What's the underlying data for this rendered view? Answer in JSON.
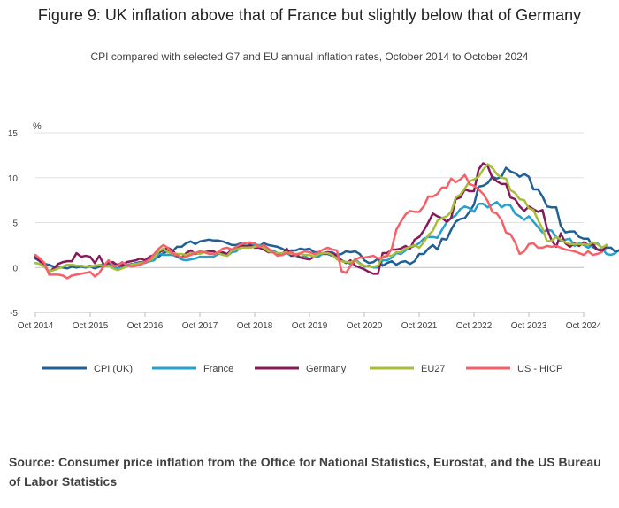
{
  "title": "Figure 9: UK inflation above that of France but slightly below that of Germany",
  "subtitle": "CPI compared with selected G7 and EU annual inflation rates, October 2014 to October 2024",
  "source": "Source: Consumer price inflation from the Office for National Statistics, Eurostat, and the US Bureau of Labor Statistics",
  "chart_data": {
    "type": "line",
    "ylabel": "%",
    "ylim": [
      -5,
      15
    ],
    "yticks": [
      -5,
      0,
      5,
      10,
      15
    ],
    "xlim": [
      0,
      120
    ],
    "grid": true,
    "legend_position": "bottom",
    "x_ticks": [
      {
        "month_index": 0,
        "label": "Oct 2014"
      },
      {
        "month_index": 12,
        "label": "Oct 2015"
      },
      {
        "month_index": 24,
        "label": "Oct 2016"
      },
      {
        "month_index": 36,
        "label": "Oct 2017"
      },
      {
        "month_index": 48,
        "label": "Oct 2018"
      },
      {
        "month_index": 60,
        "label": "Oct 2019"
      },
      {
        "month_index": 72,
        "label": "Oct 2020"
      },
      {
        "month_index": 84,
        "label": "Oct 2021"
      },
      {
        "month_index": 96,
        "label": "Oct 2022"
      },
      {
        "month_index": 108,
        "label": "Oct 2023"
      },
      {
        "month_index": 120,
        "label": "Oct 2024"
      }
    ],
    "x_note": "month_index 0 = Oct 2014, monthly observations",
    "series": [
      {
        "name": "CPI (UK)",
        "color": "#206095",
        "values": [
          1.0,
          0.7,
          0.4,
          0.3,
          0.1,
          0.0,
          0.0,
          -0.1,
          0.1,
          0.0,
          0.1,
          0.0,
          0.1,
          -0.1,
          0.1,
          0.2,
          0.3,
          0.5,
          0.3,
          0.5,
          0.3,
          0.3,
          0.5,
          0.6,
          0.6,
          0.7,
          0.9,
          1.2,
          1.6,
          1.8,
          1.8,
          2.3,
          2.3,
          2.7,
          2.9,
          2.6,
          2.9,
          3.0,
          3.1,
          3.0,
          3.0,
          2.9,
          2.7,
          2.5,
          2.5,
          2.7,
          2.4,
          2.5,
          2.4,
          2.4,
          2.7,
          2.5,
          2.4,
          2.3,
          2.1,
          1.8,
          1.9,
          1.9,
          2.1,
          2.0,
          2.1,
          1.7,
          1.7,
          1.5,
          1.5,
          1.3,
          1.4,
          1.5,
          1.8,
          1.7,
          1.8,
          1.5,
          0.8,
          0.5,
          0.6,
          1.0,
          0.2,
          0.5,
          0.7,
          0.3,
          0.6,
          0.7,
          0.4,
          0.7,
          1.5,
          1.5,
          2.1,
          2.5,
          2.0,
          3.2,
          3.1,
          4.2,
          5.1,
          5.4,
          5.5,
          6.2,
          7.0,
          9.0,
          9.1,
          9.4,
          10.1,
          9.9,
          10.1,
          11.1,
          10.7,
          10.5,
          10.1,
          10.4,
          10.1,
          8.7,
          8.7,
          7.9,
          6.8,
          6.7,
          6.7,
          4.6,
          3.9,
          4.0,
          4.0,
          3.4,
          3.2,
          3.2,
          2.3,
          2.0,
          2.0,
          2.2,
          2.2,
          1.7,
          2.0
        ]
      },
      {
        "name": "France",
        "color": "#27A0CC",
        "values": [
          0.5,
          0.4,
          0.1,
          -0.4,
          -0.3,
          -0.1,
          0.1,
          0.3,
          0.3,
          0.2,
          0.2,
          0.1,
          0.2,
          0.1,
          0.3,
          0.3,
          0.3,
          0.0,
          -0.1,
          0.1,
          0.3,
          0.4,
          0.4,
          0.5,
          0.5,
          0.7,
          0.8,
          1.6,
          1.4,
          1.4,
          1.4,
          1.2,
          0.9,
          0.8,
          0.9,
          1.0,
          1.2,
          1.2,
          1.2,
          1.2,
          1.5,
          1.5,
          1.3,
          1.7,
          1.8,
          2.3,
          2.3,
          2.6,
          2.5,
          2.5,
          2.2,
          1.9,
          1.9,
          1.6,
          1.4,
          1.6,
          1.3,
          1.3,
          1.1,
          1.3,
          0.9,
          1.2,
          1.2,
          1.6,
          1.7,
          1.7,
          1.4,
          0.8,
          0.6,
          0.4,
          0.9,
          0.5,
          0.1,
          0.2,
          0.0,
          0.0,
          0.8,
          0.8,
          1.1,
          1.6,
          1.5,
          1.9,
          2.2,
          2.4,
          2.7,
          3.2,
          3.4,
          3.4,
          3.3,
          4.2,
          5.0,
          5.5,
          5.8,
          6.5,
          6.8,
          6.6,
          6.2,
          7.1,
          7.1,
          6.7,
          7.0,
          7.3,
          6.7,
          7.0,
          6.9,
          6.0,
          5.7,
          5.3,
          5.7,
          5.1,
          4.5,
          3.9,
          4.2,
          4.1,
          3.4,
          2.9,
          3.1,
          3.2,
          2.4,
          2.7,
          2.5,
          2.2,
          2.5,
          2.7,
          2.2,
          1.5,
          1.4,
          1.6
        ]
      },
      {
        "name": "Germany",
        "color": "#871A5B",
        "values": [
          1.2,
          0.7,
          0.1,
          -0.5,
          -0.1,
          0.4,
          0.6,
          0.7,
          0.7,
          1.6,
          1.2,
          1.3,
          1.2,
          0.5,
          1.3,
          0.3,
          0.5,
          0.6,
          0.2,
          0.2,
          0.6,
          0.7,
          0.8,
          1.0,
          0.8,
          1.2,
          1.4,
          1.7,
          1.9,
          2.2,
          1.9,
          1.3,
          1.1,
          1.6,
          1.9,
          1.5,
          1.6,
          1.7,
          1.8,
          1.8,
          1.5,
          1.7,
          1.5,
          2.0,
          2.2,
          2.4,
          2.3,
          2.5,
          2.2,
          2.2,
          2.0,
          1.7,
          1.7,
          1.5,
          1.4,
          2.1,
          1.3,
          1.5,
          1.1,
          1.0,
          0.9,
          1.2,
          1.5,
          1.6,
          1.7,
          1.6,
          1.3,
          0.8,
          0.5,
          0.8,
          0.2,
          0.0,
          -0.2,
          -0.5,
          -0.7,
          -0.7,
          1.6,
          1.6,
          2.0,
          2.0,
          2.1,
          2.4,
          2.1,
          3.1,
          3.4,
          4.1,
          5.0,
          6.0,
          5.7,
          5.5,
          5.1,
          5.5,
          7.6,
          7.8,
          8.7,
          8.5,
          8.5,
          10.9,
          11.6,
          11.3,
          10.0,
          9.6,
          9.3,
          9.3,
          7.8,
          7.6,
          6.8,
          6.3,
          6.8,
          6.5,
          6.2,
          6.4,
          4.3,
          3.0,
          2.3,
          3.8,
          2.7,
          2.3,
          2.7,
          2.4,
          2.8,
          2.5,
          2.6,
          2.0,
          1.8,
          2.5
        ]
      },
      {
        "name": "EU27",
        "color": "#A8BD3A",
        "values": [
          0.5,
          0.4,
          0.1,
          -0.4,
          -0.3,
          -0.1,
          0.1,
          0.3,
          0.3,
          0.2,
          0.2,
          0.1,
          0.1,
          0.2,
          0.3,
          0.1,
          0.2,
          -0.1,
          -0.3,
          -0.1,
          0.1,
          0.3,
          0.4,
          0.5,
          0.6,
          0.8,
          1.1,
          1.8,
          2.1,
          1.7,
          1.6,
          1.5,
          1.5,
          1.4,
          1.6,
          1.6,
          1.5,
          1.7,
          1.6,
          1.5,
          1.6,
          1.4,
          1.3,
          1.9,
          2.0,
          2.2,
          2.2,
          2.2,
          2.3,
          2.4,
          2.2,
          1.8,
          1.7,
          1.6,
          1.6,
          1.7,
          1.5,
          1.5,
          1.5,
          1.4,
          1.4,
          1.2,
          1.5,
          1.6,
          1.6,
          1.4,
          0.9,
          0.7,
          0.6,
          0.6,
          0.8,
          0.4,
          0.2,
          0.1,
          0.1,
          0.2,
          1.2,
          1.3,
          1.3,
          1.7,
          1.7,
          2.1,
          2.3,
          2.5,
          2.2,
          2.8,
          3.6,
          4.1,
          5.2,
          5.5,
          5.7,
          6.2,
          7.8,
          8.1,
          8.8,
          9.6,
          9.8,
          10.1,
          10.9,
          11.5,
          11.1,
          10.4,
          10.0,
          9.9,
          8.6,
          8.3,
          7.6,
          7.5,
          6.6,
          6.4,
          5.3,
          4.3,
          2.9,
          3.0,
          3.4,
          3.1,
          2.8,
          2.6,
          2.6,
          2.6,
          2.6,
          2.5,
          2.8,
          2.6,
          2.2,
          2.5
        ]
      },
      {
        "name": "US - HICP",
        "color": "#F66068",
        "values": [
          1.4,
          1.0,
          0.5,
          -0.8,
          -0.8,
          -0.8,
          -0.9,
          -1.2,
          -0.9,
          -0.8,
          -0.7,
          -0.6,
          -0.5,
          -1.0,
          -0.6,
          0.2,
          0.8,
          0.2,
          0.2,
          0.6,
          0.3,
          0.1,
          0.2,
          0.3,
          0.6,
          0.9,
          1.5,
          2.1,
          2.5,
          2.2,
          1.5,
          1.4,
          1.1,
          1.2,
          1.4,
          1.6,
          1.8,
          1.7,
          1.5,
          1.5,
          1.7,
          2.1,
          2.2,
          2.0,
          2.3,
          2.6,
          2.7,
          2.8,
          2.7,
          2.3,
          2.5,
          2.1,
          1.7,
          1.3,
          1.4,
          1.6,
          1.7,
          1.4,
          1.6,
          1.8,
          1.7,
          1.5,
          1.7,
          2.0,
          2.2,
          2.0,
          1.9,
          -0.4,
          -0.6,
          0.2,
          0.9,
          1.1,
          1.1,
          1.2,
          1.3,
          1.0,
          1.1,
          1.3,
          2.1,
          4.2,
          5.1,
          5.9,
          6.3,
          6.2,
          6.2,
          6.8,
          7.9,
          7.9,
          8.2,
          8.9,
          8.9,
          9.9,
          9.5,
          9.8,
          10.3,
          9.3,
          9.1,
          8.7,
          8.2,
          7.4,
          6.2,
          6.0,
          5.3,
          3.9,
          3.7,
          2.8,
          1.5,
          1.8,
          2.6,
          2.7,
          2.2,
          2.2,
          2.4,
          2.3,
          2.4,
          2.2,
          2.0,
          1.9,
          1.8,
          1.6,
          1.4,
          1.8,
          1.4,
          1.5,
          1.7
        ]
      }
    ]
  }
}
